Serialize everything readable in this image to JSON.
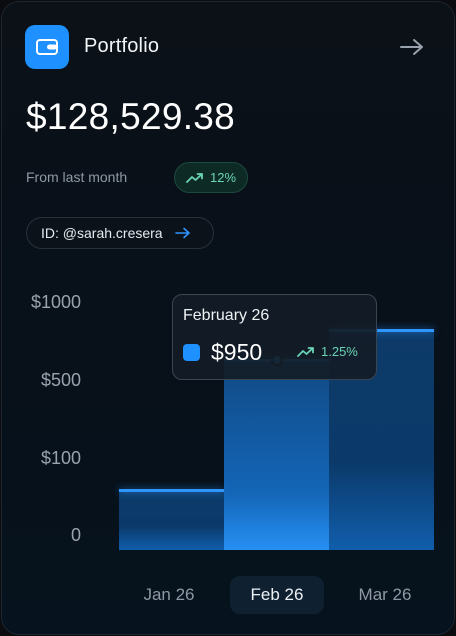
{
  "header": {
    "title": "Portfolio",
    "logo_icon": "wallet-icon",
    "action_icon": "arrow-right-icon"
  },
  "summary": {
    "balance": "$128,529.38",
    "from_label": "From last month",
    "change": "12%",
    "change_icon": "trend-up-icon"
  },
  "account": {
    "id_label": "ID: @sarah.cresera",
    "icon": "arrow-right-icon"
  },
  "tooltip": {
    "date": "February 26",
    "value": "$950",
    "change": "1.25%"
  },
  "periods": [
    {
      "label": "Jan 26",
      "active": false
    },
    {
      "label": "Feb 26",
      "active": true
    },
    {
      "label": "Mar 26",
      "active": false
    }
  ],
  "colors": {
    "accent": "#1e90ff",
    "positive": "#6ad4b4"
  },
  "chart_data": {
    "type": "bar",
    "y_tick_labels": [
      "$1000",
      "$500",
      "$100",
      "0"
    ],
    "categories": [
      "Jan 26",
      "Feb 26",
      "Mar 26"
    ],
    "values": [
      300,
      950,
      1100
    ],
    "highlighted": "Feb 26"
  }
}
